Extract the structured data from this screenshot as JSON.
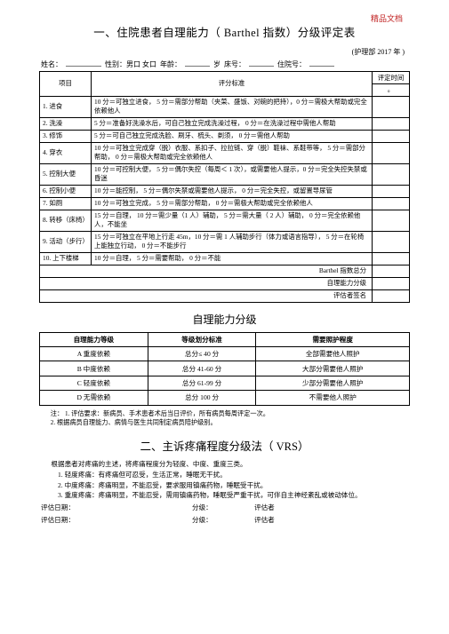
{
  "watermark": "精品文档",
  "title1": "一、住院患者自理能力（ Barthel 指数）分级评定表",
  "dept": "(护理部   2017 年 )",
  "info": {
    "name_label": "姓名：",
    "sex_label": "性别：男口    女口",
    "age_label": "年龄：",
    "age_unit": "岁",
    "bed_label": "床号：",
    "hosp_label": "住院号："
  },
  "table_headers": {
    "item": "项目",
    "criteria": "评分标准",
    "score": "评定时间",
    "blank": "。"
  },
  "rows": [
    {
      "no": "1.",
      "name": "进食",
      "crit": "10 分＝可独立进食， 5 分＝需部分帮助（夹菜、盛饭、对碗的把持），0 分＝需极大帮助或完全依赖他人"
    },
    {
      "no": "2.",
      "name": "洗澡",
      "crit": "5 分＝准备好洗澡水后，可自己独立完成洗澡过程，   0 分＝在洗澡过程中需他人帮助"
    },
    {
      "no": "3.",
      "name": "修饰",
      "crit": "5 分＝可自己独立完成洗脸、刷牙、梳头、剃须，  0 分＝需他人帮助"
    },
    {
      "no": "4.",
      "name": "穿衣",
      "crit": "10 分＝可独立完成穿（脱）衣服、系扣子、拉拉链、穿（脱）鞋袜、系鞋带等， 5 分＝需部分帮助， 0 分＝需极大帮助或完全依赖他人"
    },
    {
      "no": "5.",
      "name": "控制大便",
      "crit": "10 分＝可控制大便， 5 分＝偶尔失控（每周＜ 1 次），或需要他人提示，0 分＝完全失控失禁或昏迷"
    },
    {
      "no": "6.",
      "name": "控制小便",
      "crit": "10 分＝能控制， 5 分＝偶尔失禁或需要他人提示， 0 分＝完全失控，或留置导尿管"
    },
    {
      "no": "7.",
      "name": "如厕",
      "crit": "10 分＝可独立完成， 5 分＝需部分帮助， 0 分＝需极大帮助或完全依赖他人"
    },
    {
      "no": "8.",
      "name": "转移（床椅）",
      "crit": "15 分＝自理， 10 分＝需少量（1 人）辅助， 5 分＝需大量（ 2 人）辅助， 0 分＝完全依赖他人，不能坐"
    },
    {
      "no": "9.",
      "name": "活动（步行）",
      "crit": "15 分＝可独立在平地上行走 45m，10 分＝需 1 人辅助步行（体力或语言指导）， 5 分＝在轮椅上能独立行动， 0 分＝不能步行"
    },
    {
      "no": "10.",
      "name": "上下楼梯",
      "crit": "10 分＝自理， 5 分＝需要帮助， 0 分＝不能"
    }
  ],
  "summary": {
    "total": "Barthel   指数总分",
    "grade": "自理能力分级",
    "sign": "评估者签名"
  },
  "section_title": "自理能力分级",
  "grade_headers": {
    "level": "自理能力等级",
    "std": "等级划分标准",
    "need": "需要照护程度"
  },
  "grades": [
    {
      "level": "A 重度依赖",
      "std": "总分≤ 40 分",
      "need": "全部需要他人照护"
    },
    {
      "level": "B 中度依赖",
      "std": "总分 41-60 分",
      "need": "大部分需要他人照护"
    },
    {
      "level": "C 轻度依赖",
      "std": "总分 61-99 分",
      "need": "少部分需要他人照护"
    },
    {
      "level": "D 无需依赖",
      "std": "总分 100 分",
      "need": "不需要他人照护"
    }
  ],
  "notes": [
    "注： 1. 评估要求：新病员、手术患者术后当日评价，所有病员每周评定一次。",
    "2. 根据病员自理能力、病情与医生共同制定病员陪护级别。"
  ],
  "title2": "二、主诉疼痛程度分级法（  VRS）",
  "vrs": {
    "lead": "根据患者对疼痛的主述，将疼痛程度分为轻度、中度、重度三类。",
    "items": [
      "1. 轻度疼痛：有疼痛但可忍受，生活正常，睡眠无干扰。",
      "2. 中度疼痛：疼痛明显，不能忍受，要求服用镇痛药物，睡眠受干扰。",
      "3. 重度疼痛：疼痛明显，不能忍受，需用镇痛药物，睡眠受严重干扰，可伴自主神经紊乱或被动体位。"
    ],
    "eval_date": "评估日期：",
    "eval_grade": "分级：",
    "eval_person": "评估者"
  }
}
